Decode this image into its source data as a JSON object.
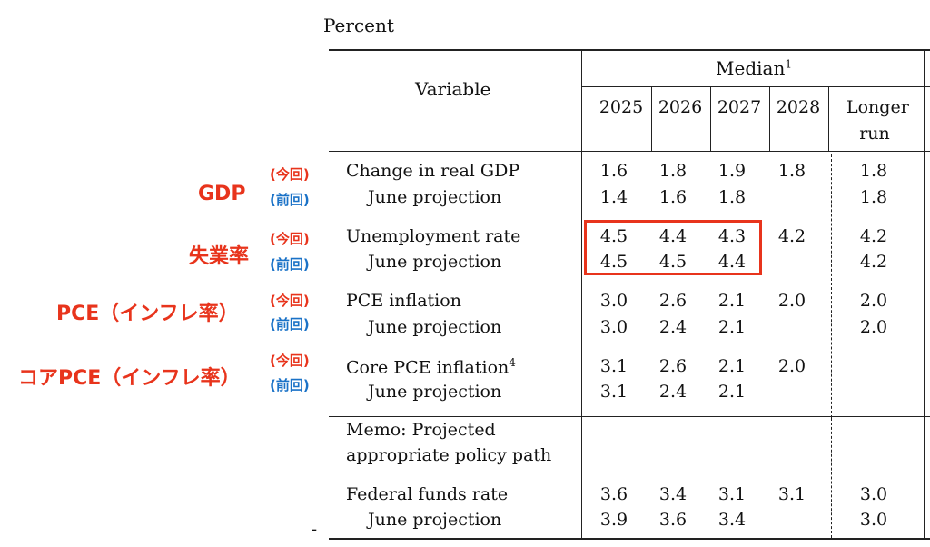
{
  "title": "Percent",
  "header": {
    "variable": "Variable",
    "median": "Median",
    "median_footnote": "1",
    "years": [
      "2025",
      "2026",
      "2027",
      "2028"
    ],
    "longer_run_line1": "Longer",
    "longer_run_line2": "run"
  },
  "rows": [
    {
      "label": "Change in real GDP",
      "footnote": "",
      "values": [
        "1.6",
        "1.8",
        "1.9",
        "1.8",
        "1.8"
      ]
    },
    {
      "label": "June projection",
      "footnote": "",
      "values": [
        "1.4",
        "1.6",
        "1.8",
        "",
        "1.8"
      ]
    },
    {
      "label": "Unemployment rate",
      "footnote": "",
      "values": [
        "4.5",
        "4.4",
        "4.3",
        "4.2",
        "4.2"
      ]
    },
    {
      "label": "June projection",
      "footnote": "",
      "values": [
        "4.5",
        "4.5",
        "4.4",
        "",
        "4.2"
      ]
    },
    {
      "label": "PCE inflation",
      "footnote": "",
      "values": [
        "3.0",
        "2.6",
        "2.1",
        "2.0",
        "2.0"
      ]
    },
    {
      "label": "June projection",
      "footnote": "",
      "values": [
        "3.0",
        "2.4",
        "2.1",
        "",
        "2.0"
      ]
    },
    {
      "label": "Core PCE inflation",
      "footnote": "4",
      "values": [
        "3.1",
        "2.6",
        "2.1",
        "2.0",
        ""
      ]
    },
    {
      "label": "June projection",
      "footnote": "",
      "values": [
        "3.1",
        "2.4",
        "2.1",
        "",
        ""
      ]
    }
  ],
  "memo": {
    "line1": "Memo: Projected",
    "line2": "appropriate policy path"
  },
  "memo_rows": [
    {
      "label": "Federal funds rate",
      "values": [
        "3.6",
        "3.4",
        "3.1",
        "3.1",
        "3.0"
      ]
    },
    {
      "label": "June projection",
      "values": [
        "3.9",
        "3.6",
        "3.4",
        "",
        "3.0"
      ]
    }
  ],
  "annotations": {
    "gdp": "GDP",
    "unemployment": "失業率",
    "pce": "PCE（インフレ率）",
    "core_pce": "コアPCE（インフレ率）",
    "current": "(今回)",
    "previous": "(前回)",
    "stray_mark": "-"
  },
  "colors": {
    "annotation_red": "#e8341c",
    "annotation_blue": "#1a72c7"
  }
}
